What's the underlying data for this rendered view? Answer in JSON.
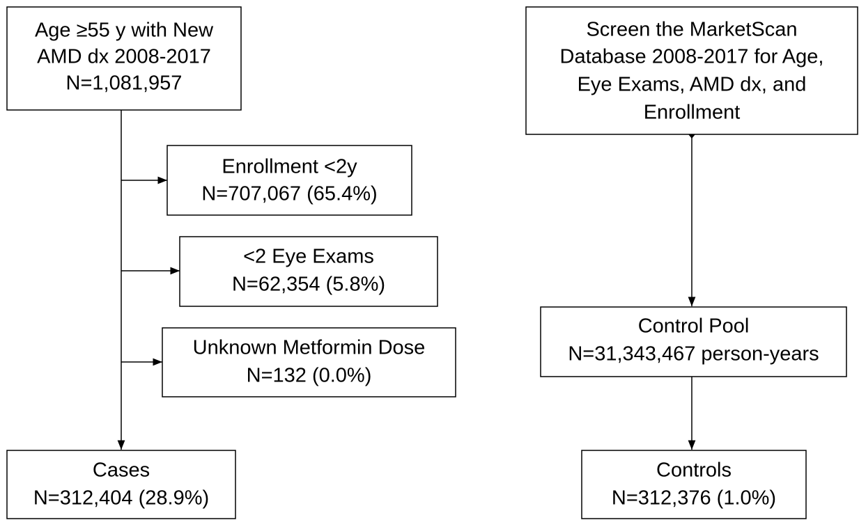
{
  "nodes": [
    {
      "lines": [
        "Age ≥55 y with New",
        "AMD dx 2008-2017",
        "N=1,081,957"
      ]
    },
    {
      "lines": [
        "Enrollment <2y",
        "N=707,067 (65.4%)"
      ]
    },
    {
      "lines": [
        "<2 Eye Exams",
        "N=62,354 (5.8%)"
      ]
    },
    {
      "lines": [
        "Unknown Metformin Dose",
        "N=132 (0.0%)"
      ]
    },
    {
      "lines": [
        "Cases",
        "N=312,404 (28.9%)"
      ]
    },
    {
      "lines": [
        "Screen the MarketScan",
        "Database 2008-2017 for Age,",
        "Eye Exams, AMD dx, and",
        "Enrollment"
      ]
    },
    {
      "lines": [
        "Control Pool",
        "N=31,343,467 person-years"
      ]
    },
    {
      "lines": [
        "Controls",
        "N=312,376 (1.0%)"
      ]
    }
  ]
}
